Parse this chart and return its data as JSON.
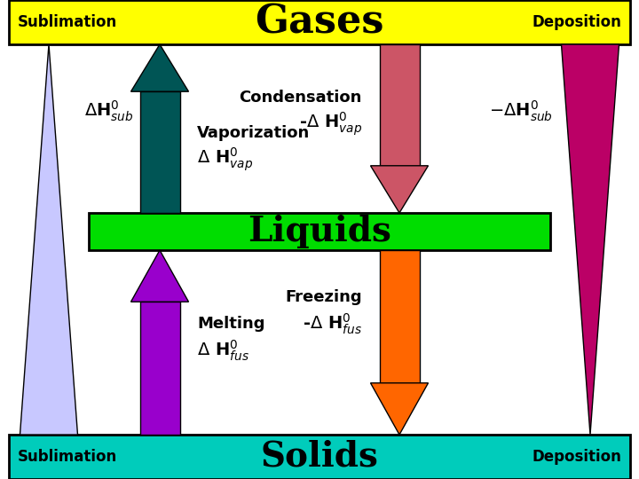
{
  "bg_color": "#ffffff",
  "gases_bar_color": "#ffff00",
  "liquids_bar_color": "#00dd00",
  "solids_bar_color": "#00ccbb",
  "gases_text": "Gases",
  "liquids_text": "Liquids",
  "solids_text": "Solids",
  "sublimation_text": "Sublimation",
  "deposition_text": "Deposition",
  "arrow_sublimation_color": "#c8c8ff",
  "arrow_vaporization_color": "#005555",
  "arrow_melting_color": "#9900cc",
  "arrow_condensation_color": "#cc5566",
  "arrow_freezing_color": "#ff6600",
  "arrow_deposition_color": "#bb0066"
}
